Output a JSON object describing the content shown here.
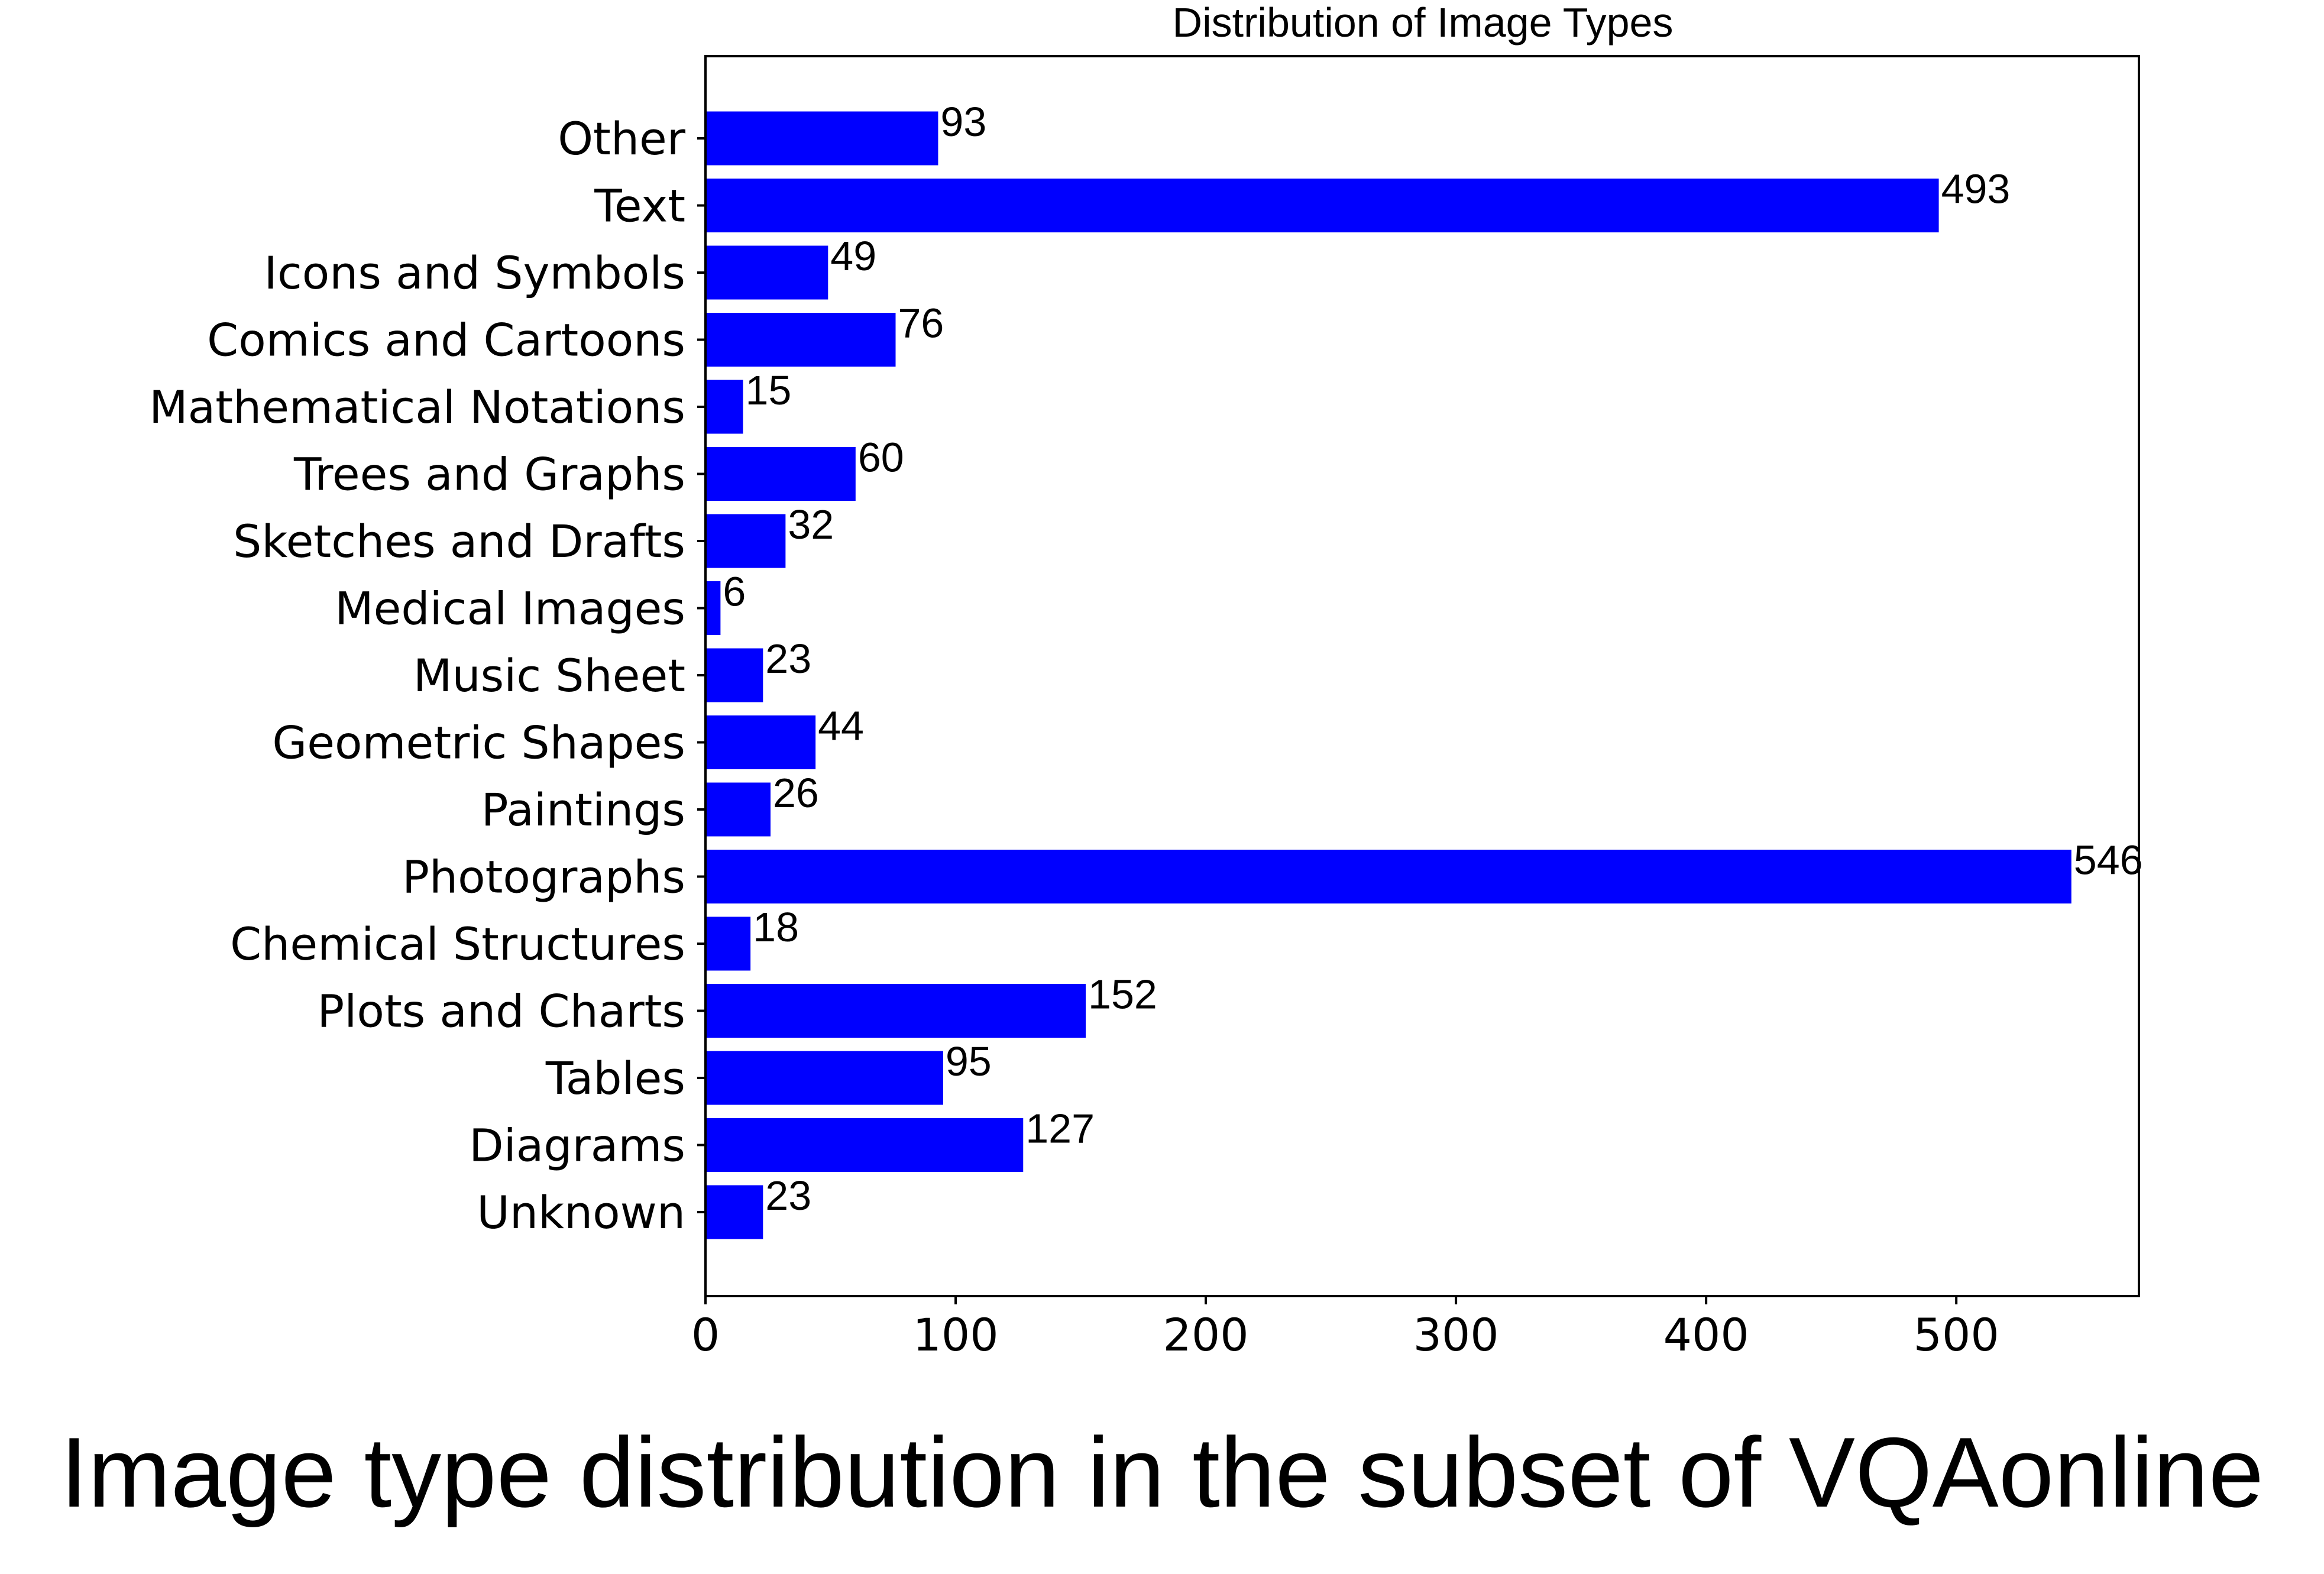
{
  "caption": "Image type distribution in the subset of VQAonline",
  "colors": {
    "bar": "#0000ff",
    "axis": "#000000",
    "background": "#ffffff"
  },
  "chart_data": {
    "type": "bar",
    "orientation": "horizontal",
    "title": "Distribution of Image Types",
    "xlabel": "",
    "ylabel": "",
    "xlim": [
      0,
      573
    ],
    "x_ticks": [
      0,
      100,
      200,
      300,
      400,
      500
    ],
    "grid": false,
    "legend": "none",
    "categories": [
      "Other",
      "Text",
      "Icons and Symbols",
      "Comics and Cartoons",
      "Mathematical Notations",
      "Trees and Graphs",
      "Sketches and Drafts",
      "Medical Images",
      "Music Sheet",
      "Geometric Shapes",
      "Paintings",
      "Photographs",
      "Chemical Structures",
      "Plots and Charts",
      "Tables",
      "Diagrams",
      "Unknown"
    ],
    "values": [
      93,
      493,
      49,
      76,
      15,
      60,
      32,
      6,
      23,
      44,
      26,
      546,
      18,
      152,
      95,
      127,
      23
    ]
  }
}
